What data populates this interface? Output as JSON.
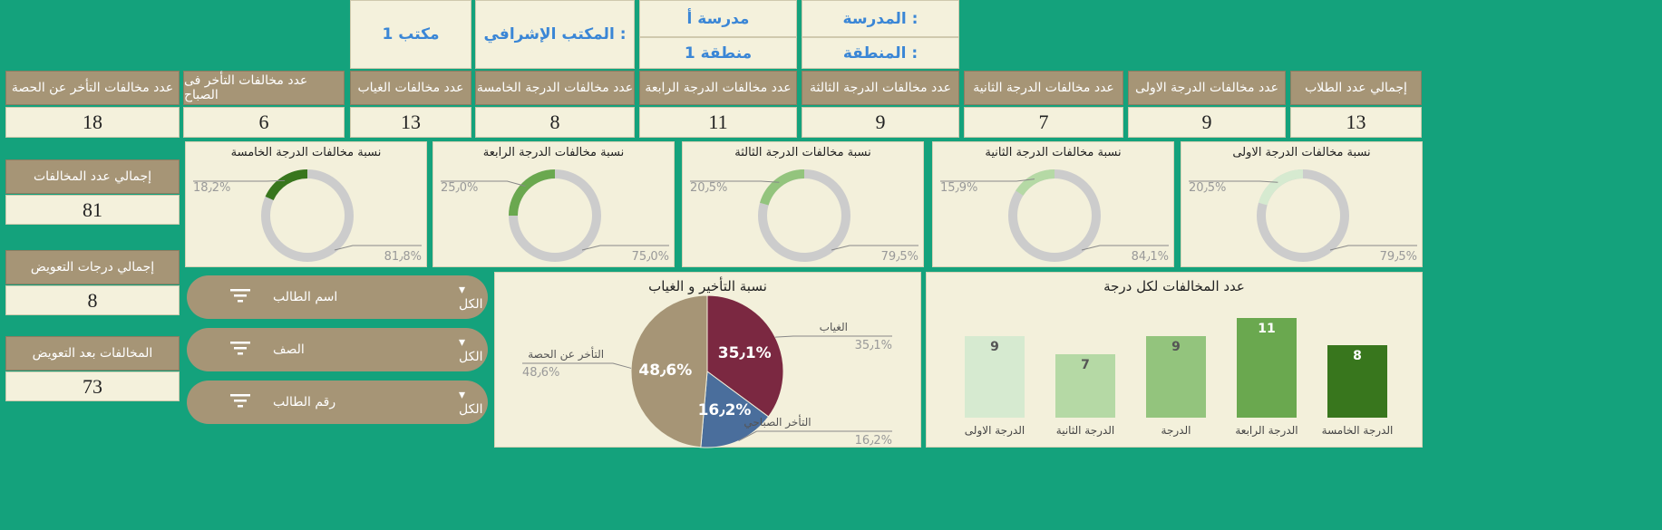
{
  "info": {
    "school_label": "المدرسة :",
    "school_value": "مدرسة أ",
    "region_label": "المنطقة :",
    "region_value": "منطقة 1",
    "office_label": "المكتب الإشرافي :",
    "office_value": "مكتب 1"
  },
  "kpis": [
    {
      "label": "إجمالي عدد الطلاب",
      "value": "13"
    },
    {
      "label": "عدد مخالفات الدرجة الاولى",
      "value": "9"
    },
    {
      "label": "عدد مخالفات الدرجة الثانية",
      "value": "7"
    },
    {
      "label": "عدد مخالفات الدرجة الثالثة",
      "value": "9"
    },
    {
      "label": "عدد مخالفات الدرجة الرابعة",
      "value": "11"
    },
    {
      "label": "عدد مخالفات الدرجة الخامسة",
      "value": "8"
    },
    {
      "label": "عدد مخالفات الغياب",
      "value": "13"
    },
    {
      "label": "عدد مخالفات التأخر فى الصباح",
      "value": "6"
    },
    {
      "label": "عدد مخالفات التأخر عن الحصة",
      "value": "18"
    }
  ],
  "totals": [
    {
      "label": "إجمالي عدد المخالفات",
      "value": "81"
    },
    {
      "label": "إجمالي درجات التعويض",
      "value": "8"
    },
    {
      "label": "المخالفات بعد التعويض",
      "value": "73"
    }
  ],
  "slicers": [
    {
      "name": "اسم الطالب",
      "selected": "الكل"
    },
    {
      "name": "الصف",
      "selected": "الكل"
    },
    {
      "name": "رقم الطالب",
      "selected": "الكل"
    }
  ],
  "colors": {
    "background": "#14a27c",
    "header": "#a69576",
    "cream": "#f4f1dc",
    "info_text": "#3a86d6",
    "donut_track": "#cccccc",
    "absence": "#7b2841",
    "morning_late": "#4a6e9c",
    "class_late": "#a69576"
  },
  "chart_data": [
    {
      "type": "pie",
      "title": "نسبة مخالفات الدرجة الاولى",
      "labels": [
        "",
        ""
      ],
      "values": [
        20.5,
        79.5
      ],
      "value_labels": [
        "20٫5%",
        "79٫5%"
      ],
      "color": "#d6ead0"
    },
    {
      "type": "pie",
      "title": "نسبة مخالفات الدرجة الثانية",
      "labels": [
        "",
        ""
      ],
      "values": [
        15.9,
        84.1
      ],
      "value_labels": [
        "15٫9%",
        "84٫1%"
      ],
      "color": "#b5d9a5"
    },
    {
      "type": "pie",
      "title": "نسبة مخالفات الدرجة الثالثة",
      "labels": [
        "",
        ""
      ],
      "values": [
        20.5,
        79.5
      ],
      "value_labels": [
        "20٫5%",
        "79٫5%"
      ],
      "color": "#93c47d"
    },
    {
      "type": "pie",
      "title": "نسبة مخالفات الدرجة الرابعة",
      "labels": [
        "",
        ""
      ],
      "values": [
        25.0,
        75.0
      ],
      "value_labels": [
        "25٫0%",
        "75٫0%"
      ],
      "color": "#6aa84f"
    },
    {
      "type": "pie",
      "title": "نسبة مخالفات الدرجة الخامسة",
      "labels": [
        "",
        ""
      ],
      "values": [
        18.2,
        81.8
      ],
      "value_labels": [
        "18٫2%",
        "81٫8%"
      ],
      "color": "#38761d"
    },
    {
      "type": "bar",
      "title": "عدد المخالفات لكل درجة",
      "categories": [
        "الدرجة الاولى",
        "الدرجة الثانية",
        "الدرجة",
        "الدرجة الرابعة",
        "الدرجة الخامسة"
      ],
      "values": [
        9,
        7,
        9,
        11,
        8
      ],
      "colors": [
        "#d6ead0",
        "#b5d9a5",
        "#93c47d",
        "#6aa84f",
        "#38761d"
      ],
      "ylim": [
        0,
        12
      ]
    },
    {
      "type": "pie",
      "title": "نسبة التأخير و الغياب",
      "labels": [
        "الغياب",
        "التأخر الصباحي",
        "التأخر عن الحصة"
      ],
      "values": [
        35.1,
        16.2,
        48.6
      ],
      "value_labels": [
        "35٫1%",
        "16٫2%",
        "48٫6%"
      ],
      "colors": [
        "#7b2841",
        "#4a6e9c",
        "#a69576"
      ]
    }
  ]
}
